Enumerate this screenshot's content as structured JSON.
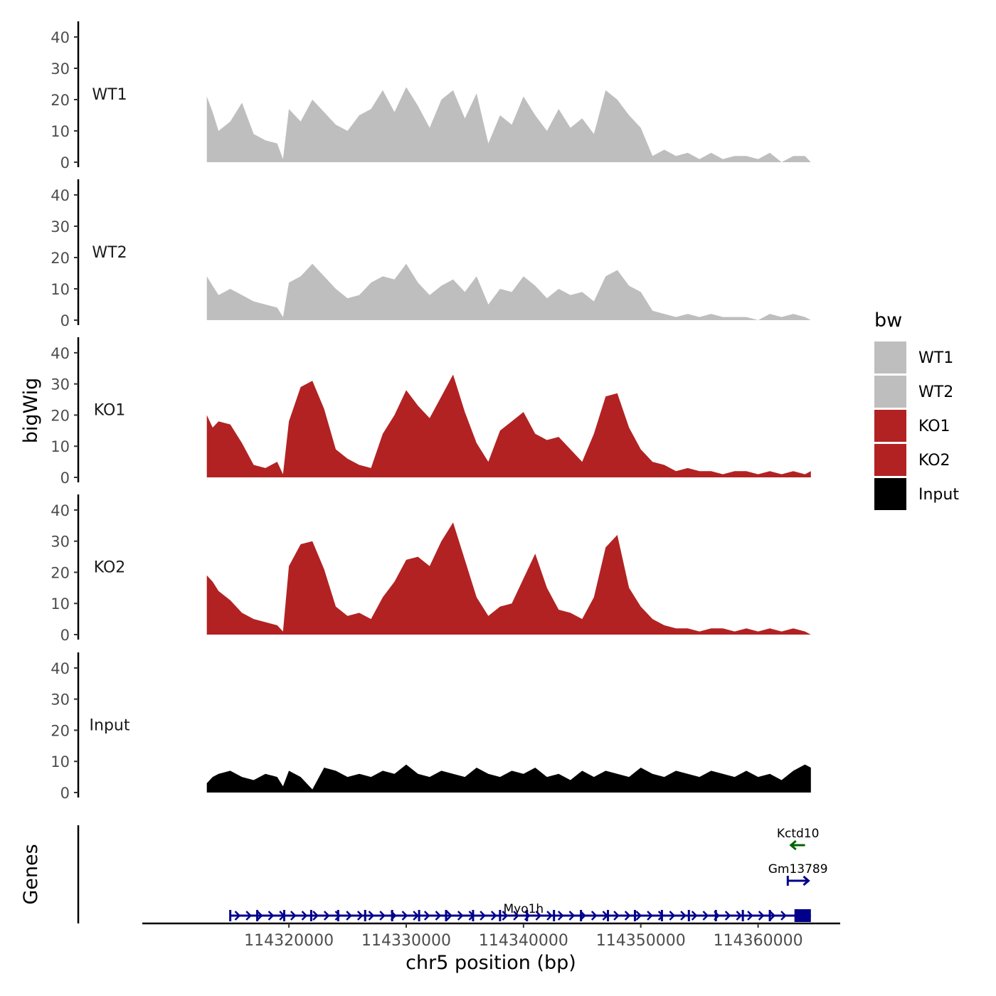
{
  "chart_data": {
    "type": "area",
    "ylabel": "bigWig",
    "xlabel": "chr5 position (bp)",
    "genes_label": "Genes",
    "xlim": [
      114307500,
      114367000
    ],
    "ylim": [
      0,
      45
    ],
    "yticks": [
      "0",
      "10",
      "20",
      "30",
      "40"
    ],
    "xticks": [
      {
        "value": 114320000,
        "label": "114320000"
      },
      {
        "value": 114330000,
        "label": "114330000"
      },
      {
        "value": 114340000,
        "label": "114340000"
      },
      {
        "value": 114350000,
        "label": "114350000"
      },
      {
        "value": 114360000,
        "label": "114360000"
      }
    ],
    "legend": {
      "title": "bw",
      "position": "right",
      "entries": [
        {
          "label": "WT1",
          "color": "#bebebe"
        },
        {
          "label": "WT2",
          "color": "#bebebe"
        },
        {
          "label": "KO1",
          "color": "#b22222"
        },
        {
          "label": "KO2",
          "color": "#b22222"
        },
        {
          "label": "Input",
          "color": "#000000"
        }
      ]
    },
    "series": [
      {
        "name": "WT1",
        "color": "#bebebe",
        "x": [
          114313000,
          114313500,
          114314000,
          114315000,
          114316000,
          114317000,
          114318000,
          114319000,
          114319500,
          114320000,
          114321000,
          114322000,
          114323000,
          114324000,
          114325000,
          114326000,
          114327000,
          114328000,
          114329000,
          114330000,
          114331000,
          114332000,
          114333000,
          114334000,
          114335000,
          114336000,
          114337000,
          114338000,
          114339000,
          114340000,
          114341000,
          114342000,
          114343000,
          114344000,
          114345000,
          114346000,
          114347000,
          114348000,
          114349000,
          114350000,
          114351000,
          114352000,
          114353000,
          114354000,
          114355000,
          114356000,
          114357000,
          114358000,
          114359000,
          114360000,
          114361000,
          114362000,
          114363000,
          114364000,
          114364500
        ],
        "values": [
          21,
          16,
          10,
          13,
          19,
          9,
          7,
          6,
          1,
          17,
          13,
          20,
          16,
          12,
          10,
          15,
          17,
          23,
          16,
          24,
          18,
          11,
          20,
          23,
          14,
          22,
          6,
          15,
          12,
          21,
          15,
          10,
          17,
          11,
          14,
          9,
          23,
          20,
          15,
          11,
          2,
          4,
          2,
          3,
          1,
          3,
          1,
          2,
          2,
          1,
          3,
          0,
          2,
          2,
          0
        ]
      },
      {
        "name": "WT2",
        "color": "#bebebe",
        "x": [
          114313000,
          114313500,
          114314000,
          114315000,
          114316000,
          114317000,
          114318000,
          114319000,
          114319500,
          114320000,
          114321000,
          114322000,
          114323000,
          114324000,
          114325000,
          114326000,
          114327000,
          114328000,
          114329000,
          114330000,
          114331000,
          114332000,
          114333000,
          114334000,
          114335000,
          114336000,
          114337000,
          114338000,
          114339000,
          114340000,
          114341000,
          114342000,
          114343000,
          114344000,
          114345000,
          114346000,
          114347000,
          114348000,
          114349000,
          114350000,
          114351000,
          114352000,
          114353000,
          114354000,
          114355000,
          114356000,
          114357000,
          114358000,
          114359000,
          114360000,
          114361000,
          114362000,
          114363000,
          114364000,
          114364500
        ],
        "values": [
          14,
          11,
          8,
          10,
          8,
          6,
          5,
          4,
          1,
          12,
          14,
          18,
          14,
          10,
          7,
          8,
          12,
          14,
          13,
          18,
          12,
          8,
          11,
          13,
          9,
          14,
          5,
          10,
          9,
          14,
          11,
          7,
          10,
          8,
          9,
          6,
          14,
          16,
          11,
          9,
          3,
          2,
          1,
          2,
          1,
          2,
          1,
          1,
          1,
          0,
          2,
          1,
          2,
          1,
          0
        ]
      },
      {
        "name": "KO1",
        "color": "#b22222",
        "x": [
          114313000,
          114313500,
          114314000,
          114315000,
          114316000,
          114317000,
          114318000,
          114319000,
          114319500,
          114320000,
          114321000,
          114322000,
          114323000,
          114324000,
          114325000,
          114326000,
          114327000,
          114328000,
          114329000,
          114330000,
          114331000,
          114332000,
          114333000,
          114334000,
          114335000,
          114336000,
          114337000,
          114338000,
          114339000,
          114340000,
          114341000,
          114342000,
          114343000,
          114344000,
          114345000,
          114346000,
          114347000,
          114348000,
          114349000,
          114350000,
          114351000,
          114352000,
          114353000,
          114354000,
          114355000,
          114356000,
          114357000,
          114358000,
          114359000,
          114360000,
          114361000,
          114362000,
          114363000,
          114364000,
          114364500
        ],
        "values": [
          20,
          16,
          18,
          17,
          11,
          4,
          3,
          5,
          1,
          18,
          29,
          31,
          22,
          9,
          6,
          4,
          3,
          14,
          20,
          28,
          23,
          19,
          26,
          33,
          21,
          11,
          5,
          15,
          18,
          21,
          14,
          12,
          13,
          9,
          5,
          14,
          26,
          27,
          16,
          9,
          5,
          4,
          2,
          3,
          2,
          2,
          1,
          2,
          2,
          1,
          2,
          1,
          2,
          1,
          2
        ]
      },
      {
        "name": "KO2",
        "color": "#b22222",
        "x": [
          114313000,
          114313500,
          114314000,
          114315000,
          114316000,
          114317000,
          114318000,
          114319000,
          114319500,
          114320000,
          114321000,
          114322000,
          114323000,
          114324000,
          114325000,
          114326000,
          114327000,
          114328000,
          114329000,
          114330000,
          114331000,
          114332000,
          114333000,
          114334000,
          114335000,
          114336000,
          114337000,
          114338000,
          114339000,
          114340000,
          114341000,
          114342000,
          114343000,
          114344000,
          114345000,
          114346000,
          114347000,
          114348000,
          114349000,
          114350000,
          114351000,
          114352000,
          114353000,
          114354000,
          114355000,
          114356000,
          114357000,
          114358000,
          114359000,
          114360000,
          114361000,
          114362000,
          114363000,
          114364000,
          114364500
        ],
        "values": [
          19,
          17,
          14,
          11,
          7,
          5,
          4,
          3,
          1,
          22,
          29,
          30,
          21,
          9,
          6,
          7,
          5,
          12,
          17,
          24,
          25,
          22,
          30,
          36,
          24,
          12,
          6,
          9,
          10,
          18,
          26,
          15,
          8,
          7,
          5,
          12,
          28,
          32,
          15,
          9,
          5,
          3,
          2,
          2,
          1,
          2,
          2,
          1,
          2,
          1,
          2,
          1,
          2,
          1,
          0
        ]
      },
      {
        "name": "Input",
        "color": "#000000",
        "x": [
          114313000,
          114313500,
          114314000,
          114315000,
          114316000,
          114317000,
          114318000,
          114319000,
          114319500,
          114320000,
          114321000,
          114322000,
          114323000,
          114324000,
          114325000,
          114326000,
          114327000,
          114328000,
          114329000,
          114330000,
          114331000,
          114332000,
          114333000,
          114334000,
          114335000,
          114336000,
          114337000,
          114338000,
          114339000,
          114340000,
          114341000,
          114342000,
          114343000,
          114344000,
          114345000,
          114346000,
          114347000,
          114348000,
          114349000,
          114350000,
          114351000,
          114352000,
          114353000,
          114354000,
          114355000,
          114356000,
          114357000,
          114358000,
          114359000,
          114360000,
          114361000,
          114362000,
          114363000,
          114364000,
          114364500
        ],
        "values": [
          3,
          5,
          6,
          7,
          5,
          4,
          6,
          5,
          2,
          7,
          5,
          1,
          8,
          7,
          5,
          6,
          5,
          7,
          6,
          9,
          6,
          5,
          7,
          6,
          5,
          8,
          6,
          5,
          7,
          6,
          8,
          5,
          6,
          4,
          7,
          5,
          7,
          6,
          5,
          8,
          6,
          5,
          7,
          6,
          5,
          7,
          6,
          5,
          7,
          5,
          6,
          4,
          7,
          9,
          8
        ]
      }
    ],
    "genes": [
      {
        "name": "Kctd10",
        "start": 114362800,
        "end": 114364000,
        "strand": "-",
        "color": "#006400",
        "row": 1
      },
      {
        "name": "Gm13789",
        "start": 114362500,
        "end": 114364300,
        "strand": "+",
        "color": "#00008b",
        "row": 2
      },
      {
        "name": "Myo1h",
        "start": 114315000,
        "end": 114364500,
        "strand": "+",
        "color": "#00008b",
        "row": 3
      }
    ]
  }
}
